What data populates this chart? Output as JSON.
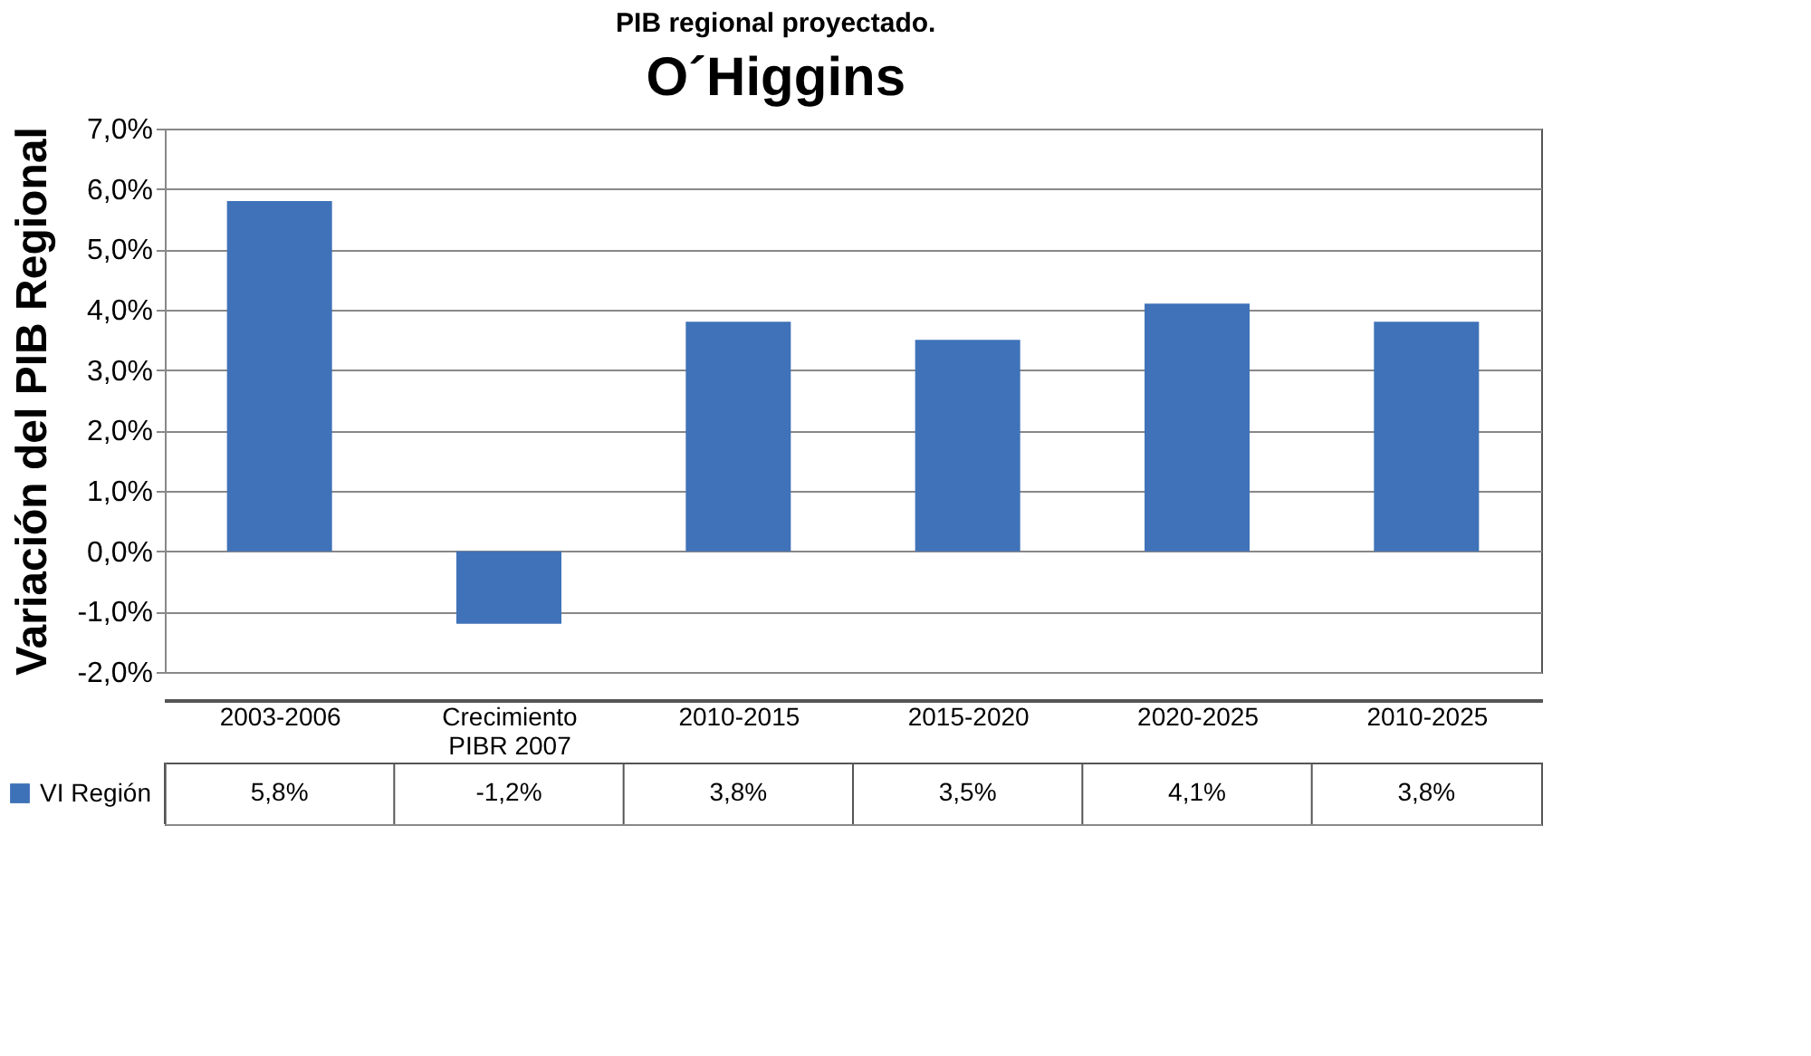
{
  "chart_data": {
    "type": "bar",
    "title": "PIB regional proyectado.",
    "subtitle": "O´Higgins",
    "ylabel": "Variación del PIB Regional",
    "categories": [
      "2003-2006",
      "Crecimiento PIBR 2007",
      "2010-2015",
      "2015-2020",
      "2020-2025",
      "2010-2025"
    ],
    "series": [
      {
        "name": "VI Región",
        "color": "#3f72b8",
        "values": [
          5.8,
          -1.2,
          3.8,
          3.5,
          4.1,
          3.8
        ],
        "value_labels": [
          "5,8%",
          "-1,2%",
          "3,8%",
          "3,5%",
          "4,1%",
          "3,8%"
        ]
      }
    ],
    "ylim": [
      -2,
      7
    ],
    "yticks": [
      {
        "value": -2,
        "label": "-2,0%"
      },
      {
        "value": -1,
        "label": "-1,0%"
      },
      {
        "value": 0,
        "label": "0,0%"
      },
      {
        "value": 1,
        "label": "1,0%"
      },
      {
        "value": 2,
        "label": "2,0%"
      },
      {
        "value": 3,
        "label": "3,0%"
      },
      {
        "value": 4,
        "label": "4,0%"
      },
      {
        "value": 5,
        "label": "5,0%"
      },
      {
        "value": 6,
        "label": "6,0%"
      },
      {
        "value": 7,
        "label": "7,0%"
      }
    ],
    "grid": "y",
    "legend": "bottom left"
  }
}
